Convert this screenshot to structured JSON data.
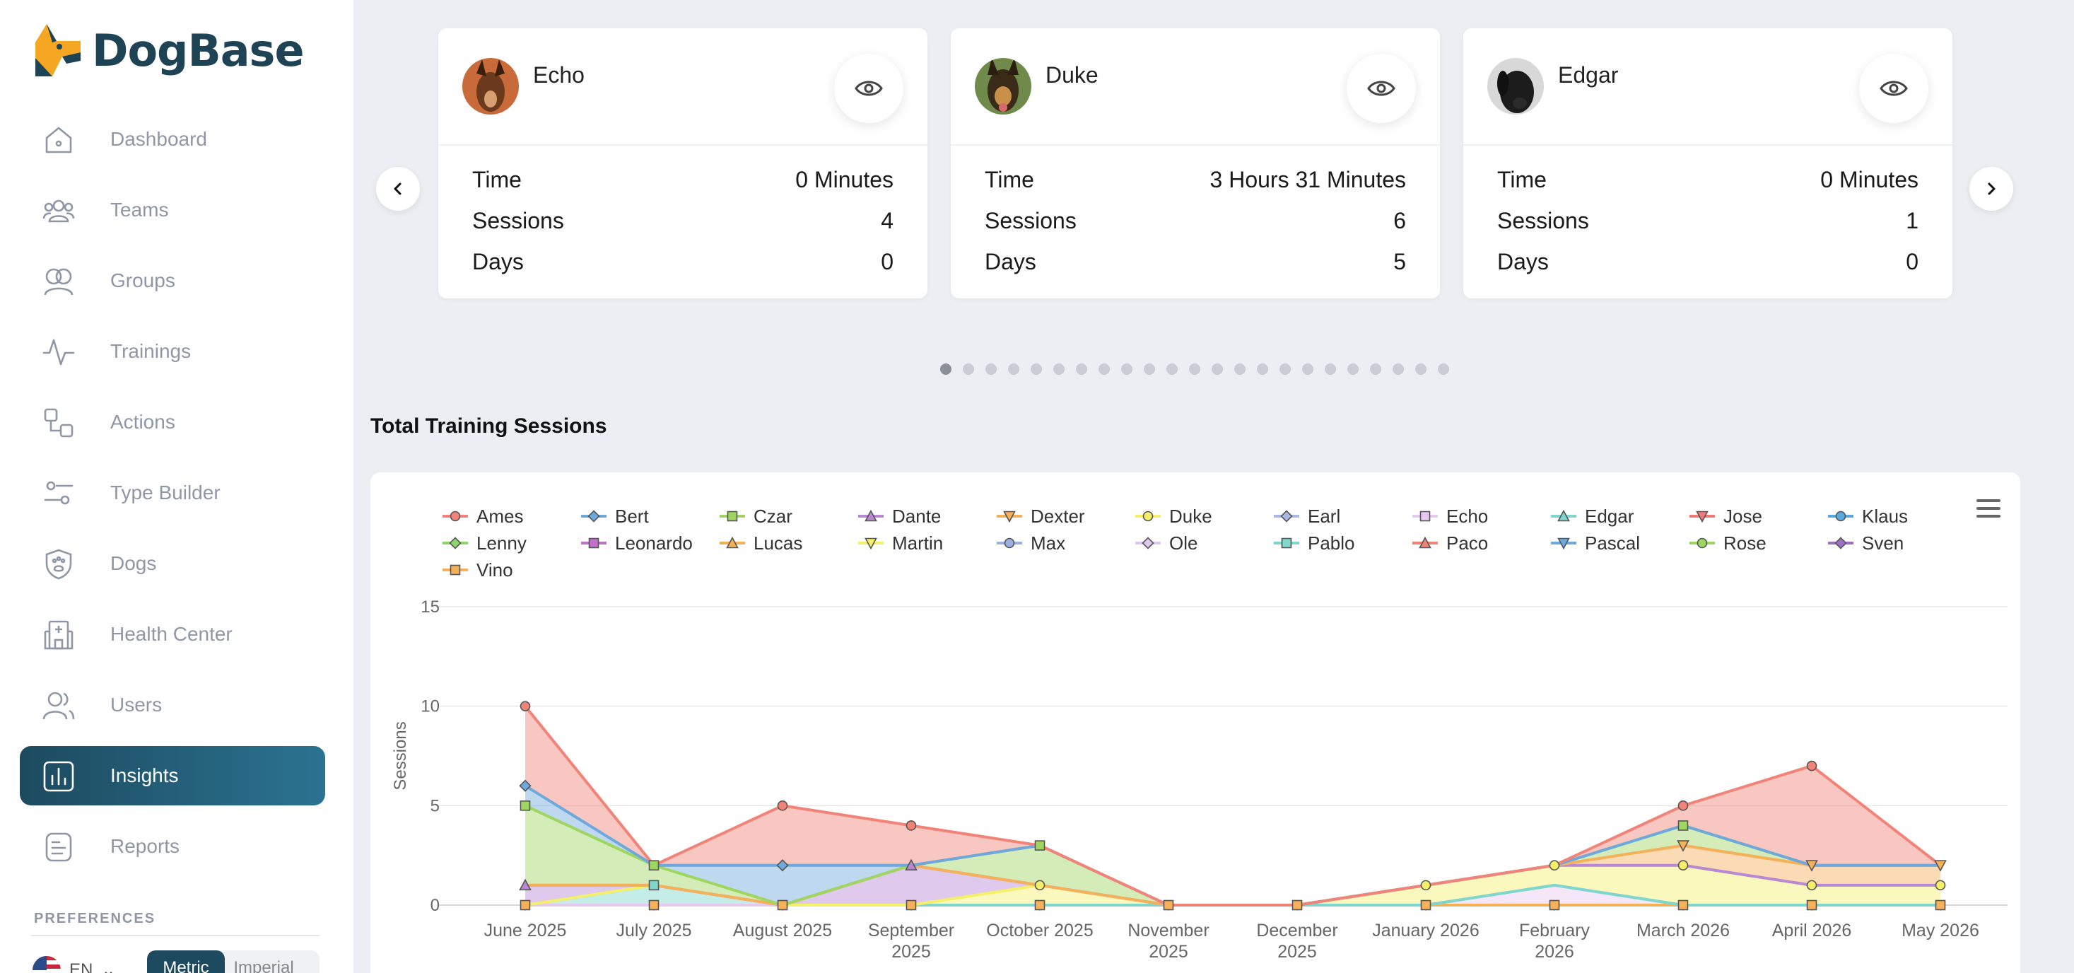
{
  "app": {
    "name": "DogBase"
  },
  "sidebar": {
    "items": [
      {
        "label": "Dashboard",
        "icon": "home-icon"
      },
      {
        "label": "Teams",
        "icon": "teams-icon"
      },
      {
        "label": "Groups",
        "icon": "groups-icon"
      },
      {
        "label": "Trainings",
        "icon": "activity-icon"
      },
      {
        "label": "Actions",
        "icon": "actions-icon"
      },
      {
        "label": "Type Builder",
        "icon": "sliders-icon"
      },
      {
        "label": "Dogs",
        "icon": "shield-paw-icon"
      },
      {
        "label": "Health Center",
        "icon": "hospital-icon"
      },
      {
        "label": "Users",
        "icon": "users-icon"
      },
      {
        "label": "Insights",
        "icon": "chart-icon",
        "active": true
      },
      {
        "label": "Reports",
        "icon": "report-icon"
      }
    ],
    "preferences_title": "PREFERENCES",
    "language": "EN",
    "units": {
      "metric": "Metric",
      "imperial": "Imperial",
      "selected": "Metric"
    }
  },
  "cards": [
    {
      "name": "Echo",
      "stats": [
        {
          "label": "Time",
          "value": "0 Minutes"
        },
        {
          "label": "Sessions",
          "value": "4"
        },
        {
          "label": "Days",
          "value": "0"
        }
      ]
    },
    {
      "name": "Duke",
      "stats": [
        {
          "label": "Time",
          "value": "3 Hours 31 Minutes"
        },
        {
          "label": "Sessions",
          "value": "6"
        },
        {
          "label": "Days",
          "value": "5"
        }
      ]
    },
    {
      "name": "Edgar",
      "stats": [
        {
          "label": "Time",
          "value": "0 Minutes"
        },
        {
          "label": "Sessions",
          "value": "1"
        },
        {
          "label": "Days",
          "value": "0"
        }
      ]
    }
  ],
  "carousel": {
    "page_count": 23,
    "active_index": 0
  },
  "chart_section": {
    "title": "Total Training Sessions"
  },
  "chart_data": {
    "type": "area",
    "stacked": true,
    "title": "",
    "ylabel": "Sessions",
    "xlabel": "",
    "ylim": [
      0,
      15
    ],
    "yticks": [
      0,
      5,
      10,
      15
    ],
    "grid": true,
    "legend_position": "top",
    "categories": [
      "June 2025",
      "July 2025",
      "August 2025",
      "September 2025",
      "October 2025",
      "November 2025",
      "December 2025",
      "January 2026",
      "February 2026",
      "March 2026",
      "April 2026",
      "May 2026"
    ],
    "legend": [
      {
        "name": "Ames",
        "color": "#f28378",
        "marker": "circle"
      },
      {
        "name": "Bert",
        "color": "#6fa8dc",
        "marker": "diamond"
      },
      {
        "name": "Czar",
        "color": "#9fd662",
        "marker": "square"
      },
      {
        "name": "Dante",
        "color": "#b888d4",
        "marker": "triangle"
      },
      {
        "name": "Dexter",
        "color": "#f5b05a",
        "marker": "triangle-down"
      },
      {
        "name": "Duke",
        "color": "#f5ef6a",
        "marker": "circle"
      },
      {
        "name": "Earl",
        "color": "#aab8e8",
        "marker": "diamond"
      },
      {
        "name": "Echo",
        "color": "#e8c8f0",
        "marker": "square"
      },
      {
        "name": "Edgar",
        "color": "#7ed6cc",
        "marker": "triangle"
      },
      {
        "name": "Jose",
        "color": "#f07a7a",
        "marker": "triangle-down"
      },
      {
        "name": "Klaus",
        "color": "#5aa8e0",
        "marker": "circle"
      },
      {
        "name": "Lenny",
        "color": "#8fd66a",
        "marker": "diamond"
      },
      {
        "name": "Leonardo",
        "color": "#c070c8",
        "marker": "square"
      },
      {
        "name": "Lucas",
        "color": "#f5b05a",
        "marker": "triangle"
      },
      {
        "name": "Martin",
        "color": "#f5ef6a",
        "marker": "triangle-down"
      },
      {
        "name": "Max",
        "color": "#9ab0e0",
        "marker": "circle"
      },
      {
        "name": "Ole",
        "color": "#dcc8f0",
        "marker": "diamond"
      },
      {
        "name": "Pablo",
        "color": "#7ed6cc",
        "marker": "square"
      },
      {
        "name": "Paco",
        "color": "#f28378",
        "marker": "triangle"
      },
      {
        "name": "Pascal",
        "color": "#6fa8dc",
        "marker": "triangle-down"
      },
      {
        "name": "Rose",
        "color": "#9fd662",
        "marker": "circle"
      },
      {
        "name": "Sven",
        "color": "#a070c8",
        "marker": "diamond"
      },
      {
        "name": "Vino",
        "color": "#f5b05a",
        "marker": "square"
      }
    ],
    "series": [
      {
        "name": "Vino",
        "color": "#f5b05a",
        "marker": "square",
        "values": [
          0,
          0,
          0,
          0,
          0,
          0,
          0,
          0,
          0,
          0,
          0,
          0
        ]
      },
      {
        "name": "Echo",
        "color": "#e8c8f0",
        "marker": "none",
        "values": [
          0,
          0,
          0,
          0,
          0,
          0,
          0,
          0,
          1,
          0,
          0,
          0
        ]
      },
      {
        "name": "Edgar",
        "color": "#7ed6cc",
        "marker": "square",
        "values": [
          0,
          1,
          0,
          0,
          0,
          0,
          0,
          0,
          0,
          0,
          0,
          0
        ]
      },
      {
        "name": "Duke",
        "color": "#f5ef6a",
        "marker": "circle",
        "values": [
          0,
          0,
          0,
          0,
          1,
          0,
          0,
          1,
          1,
          2,
          1,
          1
        ]
      },
      {
        "name": "Dante",
        "color": "#b888d4",
        "marker": "triangle",
        "values": [
          1,
          0,
          0,
          2,
          0,
          0,
          0,
          0,
          0,
          0,
          0,
          0
        ]
      },
      {
        "name": "Dexter",
        "color": "#f5b05a",
        "marker": "triangle-down",
        "values": [
          0,
          0,
          0,
          0,
          0,
          0,
          0,
          0,
          0,
          1,
          1,
          1
        ]
      },
      {
        "name": "Czar",
        "color": "#9fd662",
        "marker": "square",
        "values": [
          4,
          1,
          0,
          0,
          2,
          0,
          0,
          0,
          0,
          1,
          0,
          0
        ]
      },
      {
        "name": "Bert",
        "color": "#6fa8dc",
        "marker": "diamond",
        "values": [
          1,
          0,
          2,
          0,
          0,
          0,
          0,
          0,
          0,
          0,
          0,
          0
        ]
      },
      {
        "name": "Ames",
        "color": "#f28378",
        "marker": "circle",
        "values": [
          4,
          0,
          3,
          2,
          0,
          0,
          0,
          0,
          0,
          1,
          5,
          0
        ]
      }
    ]
  }
}
